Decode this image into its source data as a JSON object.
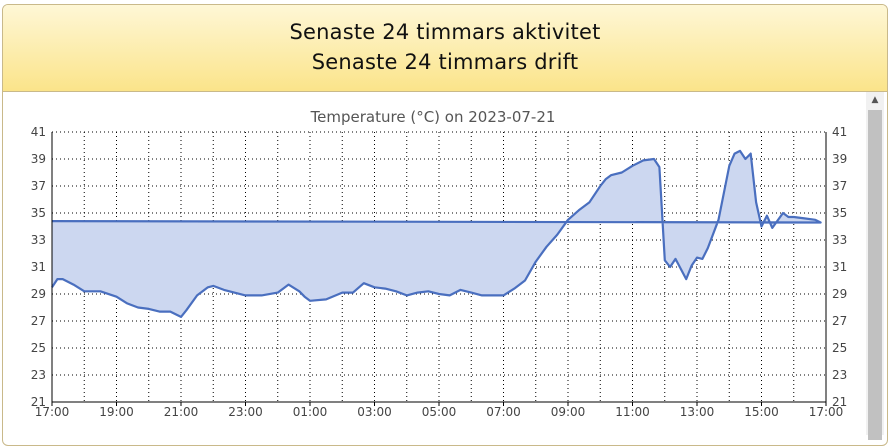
{
  "header": {
    "line1": "Senaste 24 timmars aktivitet",
    "line2": "Senaste 24 timmars drift"
  },
  "colors": {
    "header_top": "#fef7d6",
    "header_bottom": "#fbe48a",
    "series_line": "#4a6fbf",
    "series_fill": "#ccd7f0"
  },
  "icons": {
    "scroll_up": "triangle-up-icon"
  },
  "chart_data": {
    "type": "area",
    "title": "Temperature (°C) on 2023-07-21",
    "xlabel": "",
    "ylabel": "",
    "ylim": [
      21,
      41
    ],
    "yticks": [
      21,
      23,
      25,
      27,
      29,
      31,
      33,
      35,
      37,
      39,
      41
    ],
    "x_hours_range": [
      17,
      41
    ],
    "xtick_labels": [
      "17:00",
      "19:00",
      "21:00",
      "23:00",
      "01:00",
      "03:00",
      "05:00",
      "07:00",
      "09:00",
      "11:00",
      "13:00",
      "15:00",
      "17:00"
    ],
    "minor_x_step_hours": 1,
    "grid": true,
    "right_axis_duplicate": true,
    "series": [
      {
        "x": [
          "17:00",
          "17:10",
          "17:20",
          "17:40",
          "18:00",
          "18:10",
          "18:30",
          "19:00",
          "19:20",
          "19:40",
          "20:00",
          "20:20",
          "20:40",
          "21:00",
          "21:10",
          "21:30",
          "21:50",
          "22:00",
          "22:20",
          "23:00",
          "23:30",
          "24:00",
          "00:20",
          "00:40",
          "00:50",
          "01:00",
          "01:30",
          "02:00",
          "02:20",
          "02:40",
          "03:00",
          "03:20",
          "03:40",
          "04:00",
          "04:20",
          "04:40",
          "05:00",
          "05:20",
          "05:40",
          "06:00",
          "06:20",
          "06:40",
          "07:00",
          "07:20",
          "07:40",
          "08:00",
          "08:20",
          "08:40",
          "09:00",
          "09:20",
          "09:40",
          "10:00",
          "10:10",
          "10:20",
          "10:40",
          "11:00",
          "11:20",
          "11:40",
          "11:50",
          "12:00",
          "12:10",
          "12:20",
          "12:40",
          "12:50",
          "13:00",
          "13:10",
          "13:20",
          "13:40",
          "14:00",
          "14:10",
          "14:20",
          "14:30",
          "14:40",
          "14:50",
          "15:00",
          "15:10",
          "15:20",
          "15:40",
          "15:50",
          "16:00",
          "16:20",
          "16:40",
          "16:50",
          "17:00"
        ],
        "values": [
          29.5,
          30.1,
          30.1,
          29.7,
          29.2,
          29.2,
          29.2,
          28.8,
          28.3,
          28.0,
          27.9,
          27.7,
          27.7,
          27.3,
          27.8,
          28.9,
          29.5,
          29.6,
          29.3,
          28.9,
          28.9,
          29.1,
          29.7,
          29.2,
          28.8,
          28.5,
          28.6,
          29.1,
          29.1,
          29.8,
          29.5,
          29.4,
          29.2,
          28.9,
          29.1,
          29.2,
          29.0,
          28.9,
          29.3,
          29.1,
          28.9,
          28.9,
          28.9,
          29.4,
          30.0,
          31.4,
          32.5,
          33.4,
          34.5,
          35.2,
          35.8,
          37.0,
          37.5,
          37.8,
          38.0,
          38.5,
          38.9,
          39.0,
          38.4,
          31.5,
          31.0,
          31.6,
          30.1,
          31.1,
          31.7,
          31.6,
          32.4,
          34.5,
          38.5,
          39.4,
          39.6,
          39.0,
          39.4,
          35.8,
          34.0,
          34.8,
          33.9,
          35.0,
          34.7,
          34.7,
          34.6,
          34.5,
          34.3,
          34.4
        ]
      }
    ]
  }
}
